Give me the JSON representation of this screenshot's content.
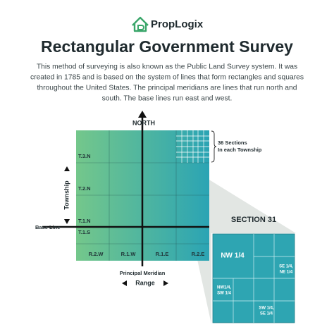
{
  "header": {
    "brand": "PropLogix",
    "title": "Rectangular Government Survey",
    "description": [
      "This method of surveying is also known as the Public Land Survey system. It was",
      "created in 1785 and is based on the system of lines that form rectangles and squares",
      "throughout the United States. The principal meridians are lines that run north and",
      "south. The base lines run east and west."
    ]
  },
  "diagram": {
    "north": "NORTH",
    "townships": [
      "T.3.N",
      "T.2.N",
      "T.1.N",
      "T.1.S"
    ],
    "ranges": [
      "R.2.W",
      "R.1.W",
      "R.1.E",
      "R.2.E"
    ],
    "sections_note": [
      "36 Sections",
      "In each Township"
    ],
    "township_axis": "Township",
    "base_line": "Base Line",
    "principal_meridian": "Principal Meridian",
    "range_axis": "Range",
    "section": {
      "title": "SECTION 31",
      "nw": "NW  1/4",
      "ne": [
        "SE 1/4,",
        "NE 1/4"
      ],
      "sw": [
        "NW1/4,",
        "SW 1/4"
      ],
      "se": [
        "SW 1/4,",
        "SE 1/4"
      ]
    }
  }
}
